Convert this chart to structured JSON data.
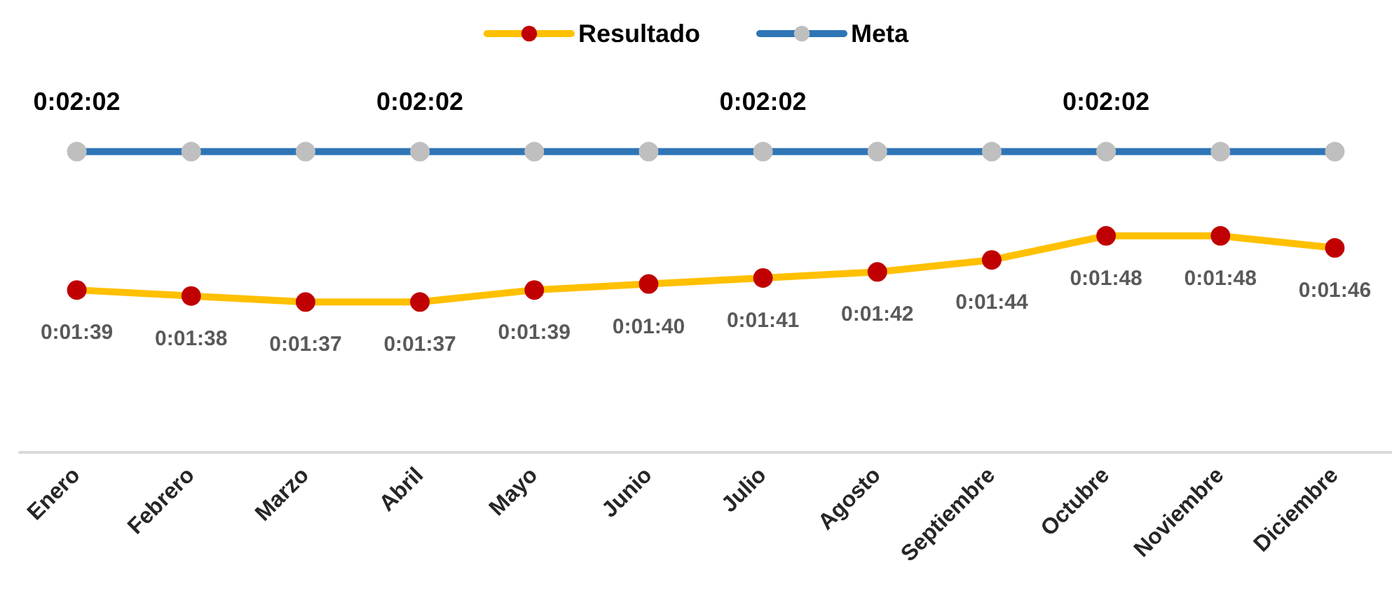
{
  "chart_data": {
    "type": "line",
    "categories": [
      "Enero",
      "Febrero",
      "Marzo",
      "Abril",
      "Mayo",
      "Junio",
      "Julio",
      "Agosto",
      "Septiembre",
      "Octubre",
      "Noviembre",
      "Diciembre"
    ],
    "series": [
      {
        "name": "Resultado",
        "color": "#ffc000",
        "colors": [
          "#c00000",
          "#c00000",
          "#c00000",
          "#c00000",
          "#c00000",
          "#c00000",
          "#c00000",
          "#c00000",
          "#c00000",
          "#c00000",
          "#c00000",
          "#c00000"
        ],
        "values": [
          99,
          98,
          97,
          97,
          99,
          100,
          101,
          102,
          104,
          108,
          108,
          106
        ],
        "value_labels": [
          "0:01:39",
          "0:01:38",
          "0:01:37",
          "0:01:37",
          "0:01:39",
          "0:01:40",
          "0:01:41",
          "0:01:42",
          "0:01:44",
          "0:01:48",
          "0:01:48",
          "0:01:46"
        ]
      },
      {
        "name": "Meta",
        "color": "#2e75b6",
        "colors": [
          "#bfbfbf",
          "#bfbfbf",
          "#bfbfbf",
          "#bfbfbf",
          "#bfbfbf",
          "#bfbfbf",
          "#bfbfbf",
          "#bfbfbf",
          "#bfbfbf",
          "#bfbfbf",
          "#bfbfbf",
          "#bfbfbf"
        ],
        "values": [
          122,
          122,
          122,
          122,
          122,
          122,
          122,
          122,
          122,
          122,
          122,
          122
        ],
        "value_labels": [
          "0:02:02",
          null,
          null,
          "0:02:02",
          null,
          null,
          "0:02:02",
          null,
          null,
          "0:02:02",
          null,
          null
        ]
      }
    ],
    "legend": "top",
    "marker": "circle",
    "grid": false
  }
}
